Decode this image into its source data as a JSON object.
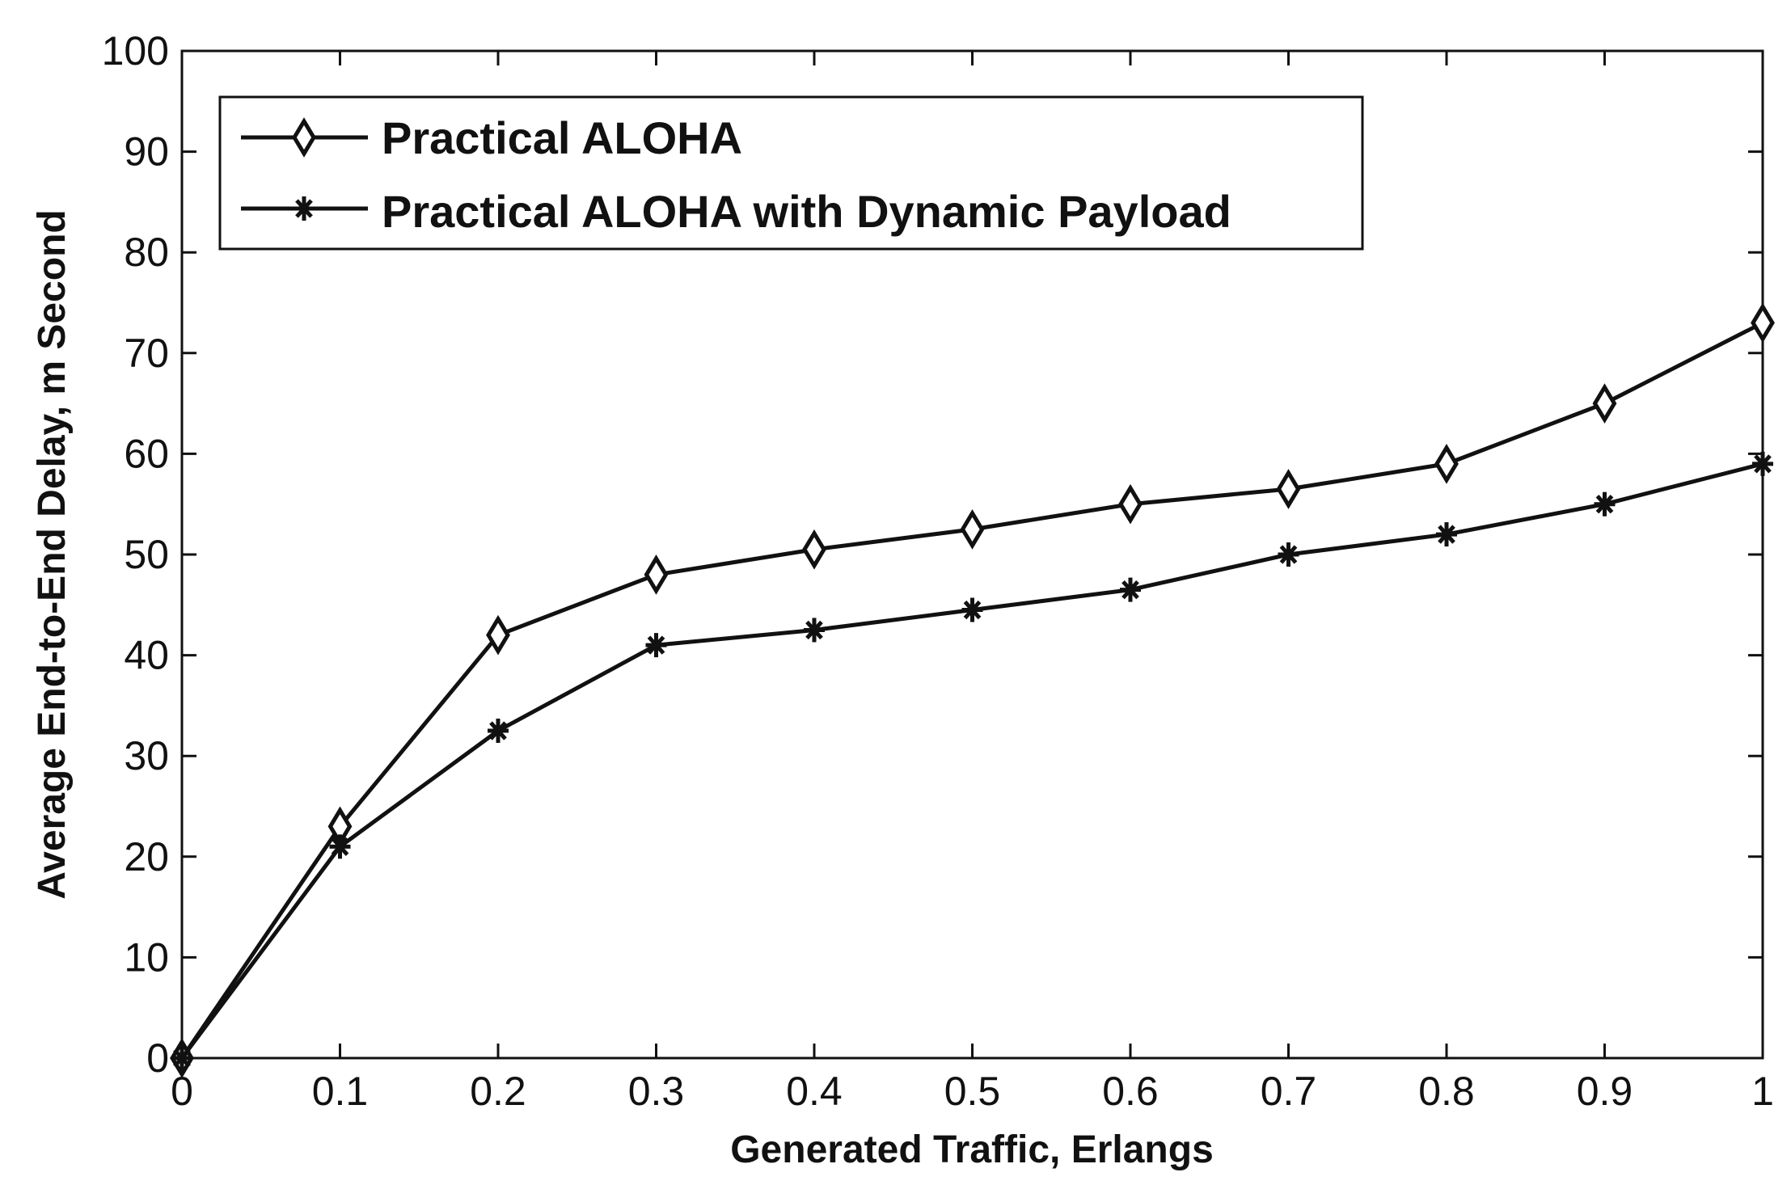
{
  "chart_data": {
    "type": "line",
    "title": "",
    "xlabel": "Generated Traffic, Erlangs",
    "ylabel": "Average End-to-End Delay, m Second",
    "xlim": [
      0,
      1
    ],
    "ylim": [
      0,
      100
    ],
    "x": [
      0,
      0.1,
      0.2,
      0.3,
      0.4,
      0.5,
      0.6,
      0.7,
      0.8,
      0.9,
      1
    ],
    "x_tick_labels": [
      "0",
      "0.1",
      "0.2",
      "0.3",
      "0.4",
      "0.5",
      "0.6",
      "0.7",
      "0.8",
      "0.9",
      "1"
    ],
    "y_ticks": [
      0,
      10,
      20,
      30,
      40,
      50,
      60,
      70,
      80,
      90,
      100
    ],
    "y_tick_labels": [
      "0",
      "10",
      "20",
      "30",
      "40",
      "50",
      "60",
      "70",
      "80",
      "90",
      "100"
    ],
    "grid": false,
    "legend_position": "top-left",
    "series": [
      {
        "name": "Practical ALOHA",
        "marker": "diamond",
        "values": [
          0,
          23,
          42,
          48,
          50.5,
          52.5,
          55,
          56.5,
          59,
          65,
          73
        ]
      },
      {
        "name": "Practical ALOHA with Dynamic Payload",
        "marker": "star",
        "values": [
          0,
          21,
          32.5,
          41,
          42.5,
          44.5,
          46.5,
          50,
          52,
          55,
          59
        ]
      }
    ]
  },
  "style": {
    "line_color": "#111111",
    "background": "#ffffff"
  }
}
